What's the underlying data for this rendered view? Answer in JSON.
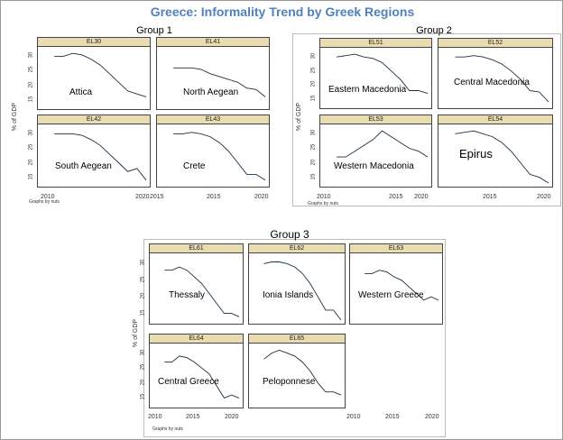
{
  "title": "Greece: Informality Trend by Greek Regions",
  "groups": [
    {
      "label": "Group 1",
      "note": "Graphs by nuts",
      "ylabel": "% of GDP"
    },
    {
      "label": "Group 2",
      "note": "Graphs by nuts",
      "ylabel": "% of GDP"
    },
    {
      "label": "Group 3",
      "note": "Graphs by nuts",
      "ylabel": "% of GDP"
    }
  ],
  "x_ticks": [
    "2010",
    "2015",
    "2020"
  ],
  "y_ticks": [
    "15",
    "20",
    "25",
    "30"
  ],
  "chart_data": [
    {
      "type": "line",
      "group": "Group 1",
      "code": "EL30",
      "label": "Attica",
      "xlim": [
        2010,
        2021
      ],
      "ylim": [
        13,
        32
      ],
      "x": [
        2011,
        2012,
        2013,
        2014,
        2015,
        2016,
        2017,
        2018,
        2019,
        2020,
        2021
      ],
      "y": [
        30,
        30,
        31,
        30.5,
        29,
        27,
        24,
        21,
        18,
        17,
        16
      ]
    },
    {
      "type": "line",
      "group": "Group 1",
      "code": "EL41",
      "label": "North Aegean",
      "xlim": [
        2010,
        2021
      ],
      "ylim": [
        13,
        32
      ],
      "x": [
        2011,
        2012,
        2013,
        2014,
        2015,
        2016,
        2017,
        2018,
        2019,
        2020,
        2021
      ],
      "y": [
        26,
        26,
        26,
        25.5,
        24,
        23,
        22,
        21,
        19,
        18.5,
        16
      ]
    },
    {
      "type": "line",
      "group": "Group 1",
      "code": "EL42",
      "label": "South Aegean",
      "xlim": [
        2010,
        2021
      ],
      "ylim": [
        13,
        32
      ],
      "x": [
        2011,
        2012,
        2013,
        2014,
        2015,
        2016,
        2017,
        2018,
        2019,
        2020,
        2021
      ],
      "y": [
        30,
        30,
        30,
        29.5,
        28,
        26,
        23,
        20,
        17,
        18,
        14
      ]
    },
    {
      "type": "line",
      "group": "Group 1",
      "code": "EL43",
      "label": "Crete",
      "xlim": [
        2010,
        2021
      ],
      "ylim": [
        13,
        32
      ],
      "x": [
        2011,
        2012,
        2013,
        2014,
        2015,
        2016,
        2017,
        2018,
        2019,
        2020,
        2021
      ],
      "y": [
        30,
        30,
        30.5,
        30,
        29,
        27,
        24,
        20,
        16,
        16,
        14
      ]
    },
    {
      "type": "line",
      "group": "Group 2",
      "code": "EL51",
      "label": "Eastern Macedonia",
      "xlim": [
        2010,
        2021
      ],
      "ylim": [
        13,
        32
      ],
      "x": [
        2011,
        2012,
        2013,
        2014,
        2015,
        2016,
        2017,
        2018,
        2019,
        2020,
        2021
      ],
      "y": [
        30,
        30.5,
        31,
        30,
        29.5,
        28,
        25,
        22,
        18,
        18,
        17
      ]
    },
    {
      "type": "line",
      "group": "Group 2",
      "code": "EL52",
      "label": "Central Macedonia",
      "xlim": [
        2010,
        2021
      ],
      "ylim": [
        13,
        32
      ],
      "x": [
        2011,
        2012,
        2013,
        2014,
        2015,
        2016,
        2017,
        2018,
        2019,
        2020,
        2021
      ],
      "y": [
        30,
        30,
        30.5,
        30,
        29,
        27.5,
        25,
        22,
        18,
        17.5,
        14
      ]
    },
    {
      "type": "line",
      "group": "Group 2",
      "code": "EL53",
      "label": "Western Macedonia",
      "xlim": [
        2010,
        2021
      ],
      "ylim": [
        13,
        32
      ],
      "x": [
        2011,
        2012,
        2013,
        2014,
        2015,
        2016,
        2017,
        2018,
        2019,
        2020,
        2021
      ],
      "y": [
        22,
        22,
        24,
        26,
        28,
        31,
        29,
        27,
        25,
        24,
        22
      ]
    },
    {
      "type": "line",
      "group": "Group 2",
      "code": "EL54",
      "label": "Epirus",
      "xlim": [
        2010,
        2021
      ],
      "ylim": [
        13,
        32
      ],
      "x": [
        2011,
        2012,
        2013,
        2014,
        2015,
        2016,
        2017,
        2018,
        2019,
        2020,
        2021
      ],
      "y": [
        30,
        30.5,
        31,
        30,
        29,
        27,
        24,
        20,
        16,
        15,
        13
      ]
    },
    {
      "type": "line",
      "group": "Group 3",
      "code": "EL61",
      "label": "Thessaly",
      "xlim": [
        2010,
        2021
      ],
      "ylim": [
        13,
        32
      ],
      "x": [
        2011,
        2012,
        2013,
        2014,
        2015,
        2016,
        2017,
        2018,
        2019,
        2020,
        2021
      ],
      "y": [
        28,
        28,
        29,
        28,
        26,
        24,
        21,
        18,
        15,
        15,
        14
      ]
    },
    {
      "type": "line",
      "group": "Group 3",
      "code": "EL62",
      "label": "Ionia Islands",
      "xlim": [
        2010,
        2021
      ],
      "ylim": [
        13,
        32
      ],
      "x": [
        2011,
        2012,
        2013,
        2014,
        2015,
        2016,
        2017,
        2018,
        2019,
        2020,
        2021
      ],
      "y": [
        30,
        30.5,
        30.5,
        30,
        29,
        27,
        24,
        20,
        16,
        16,
        13
      ]
    },
    {
      "type": "line",
      "group": "Group 3",
      "code": "EL63",
      "label": "Western Greece",
      "xlim": [
        2010,
        2021
      ],
      "ylim": [
        13,
        32
      ],
      "x": [
        2011,
        2012,
        2013,
        2014,
        2015,
        2016,
        2017,
        2018,
        2019,
        2020,
        2021
      ],
      "y": [
        27,
        27,
        28,
        27.5,
        26,
        25,
        23,
        21,
        19,
        20,
        19
      ]
    },
    {
      "type": "line",
      "group": "Group 3",
      "code": "EL64",
      "label": "Central Greece",
      "xlim": [
        2010,
        2021
      ],
      "ylim": [
        13,
        32
      ],
      "x": [
        2011,
        2012,
        2013,
        2014,
        2015,
        2016,
        2017,
        2018,
        2019,
        2020,
        2021
      ],
      "y": [
        27,
        27,
        29,
        28.5,
        27,
        25,
        23,
        19,
        15,
        16,
        15
      ]
    },
    {
      "type": "line",
      "group": "Group 3",
      "code": "EL65",
      "label": "Peloponnese",
      "xlim": [
        2010,
        2021
      ],
      "ylim": [
        13,
        32
      ],
      "x": [
        2011,
        2012,
        2013,
        2014,
        2015,
        2016,
        2017,
        2018,
        2019,
        2020,
        2021
      ],
      "y": [
        28,
        30,
        31,
        30,
        29,
        27,
        24,
        20,
        17,
        17,
        16
      ]
    }
  ]
}
